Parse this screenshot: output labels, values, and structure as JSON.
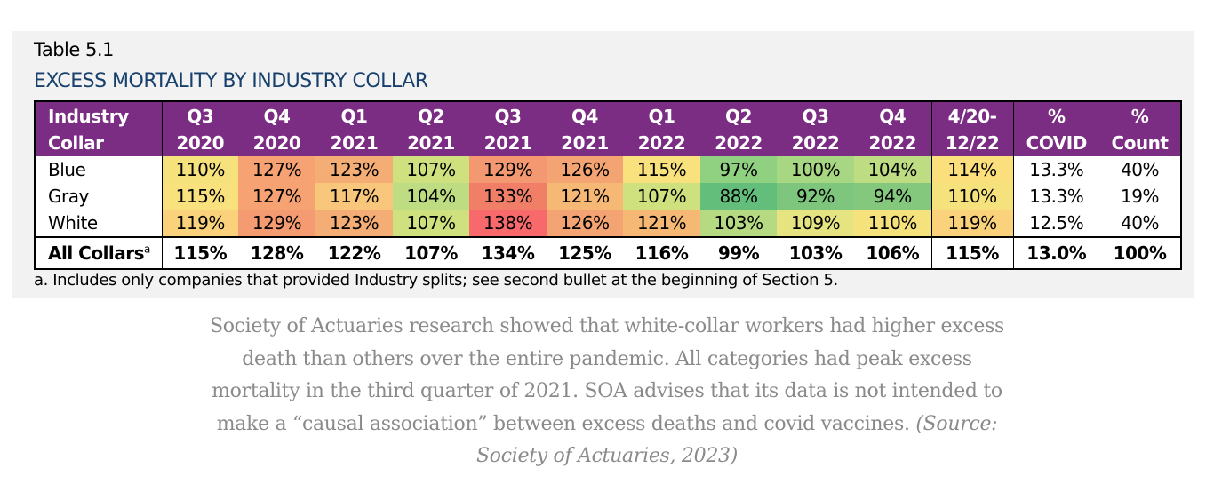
{
  "table_label": "Table 5.1",
  "table_title": "EXCESS MORTALITY BY INDUSTRY COLLAR",
  "header": {
    "first_line1": "Industry",
    "first_line2": "Collar",
    "columns": [
      {
        "l1": "Q3",
        "l2": "2020"
      },
      {
        "l1": "Q4",
        "l2": "2020"
      },
      {
        "l1": "Q1",
        "l2": "2021"
      },
      {
        "l1": "Q2",
        "l2": "2021"
      },
      {
        "l1": "Q3",
        "l2": "2021"
      },
      {
        "l1": "Q4",
        "l2": "2021"
      },
      {
        "l1": "Q1",
        "l2": "2022"
      },
      {
        "l1": "Q2",
        "l2": "2022"
      },
      {
        "l1": "Q3",
        "l2": "2022"
      },
      {
        "l1": "Q4",
        "l2": "2022"
      },
      {
        "l1": "4/20-",
        "l2": "12/22"
      },
      {
        "l1": "%",
        "l2": "COVID"
      },
      {
        "l1": "%",
        "l2": "Count"
      }
    ]
  },
  "rows": [
    {
      "label": "Blue",
      "values": [
        "110%",
        "127%",
        "123%",
        "107%",
        "129%",
        "126%",
        "115%",
        "97%",
        "100%",
        "104%",
        "114%",
        "13.3%",
        "40%"
      ]
    },
    {
      "label": "Gray",
      "values": [
        "115%",
        "127%",
        "117%",
        "104%",
        "133%",
        "121%",
        "107%",
        "88%",
        "92%",
        "94%",
        "110%",
        "13.3%",
        "19%"
      ]
    },
    {
      "label": "White",
      "values": [
        "119%",
        "129%",
        "123%",
        "107%",
        "138%",
        "126%",
        "121%",
        "103%",
        "109%",
        "110%",
        "119%",
        "12.5%",
        "40%"
      ]
    }
  ],
  "total": {
    "label": "All Collars",
    "superscript": "a",
    "values": [
      "115%",
      "128%",
      "122%",
      "107%",
      "134%",
      "125%",
      "116%",
      "99%",
      "103%",
      "106%",
      "115%",
      "13.0%",
      "100%"
    ]
  },
  "heat_colors": [
    [
      "#f6e27c",
      "#f6a272",
      "#f4ad74",
      "#cfe07e",
      "#f39870",
      "#f4a472",
      "#f9e17e",
      "#8fd081",
      "#a7d782",
      "#bedd82",
      "#fbdf7d"
    ],
    [
      "#f9e17e",
      "#f6a272",
      "#f8c77b",
      "#bedd82",
      "#f17f68",
      "#f5b875",
      "#cfe07e",
      "#63be7b",
      "#7ec67d",
      "#84c87e",
      "#f6e27c"
    ],
    [
      "#fbd27c",
      "#f59b71",
      "#f4ad74",
      "#cfe07e",
      "#f8696b",
      "#f4a472",
      "#f5b875",
      "#b5da81",
      "#e6e481",
      "#f6e27c",
      "#fbd27c"
    ]
  ],
  "footnote": "a. Includes only companies that provided Industry splits; see second bullet at the beginning of Section 5.",
  "caption": {
    "text": "Society of Actuaries research showed that white-collar workers had higher excess death than others over the entire pandemic. All categories had peak excess mortality in the third quarter of 2021. SOA advises that its data is not intended to make a “causal association” between excess deaths and covid vaccines.",
    "source": "(Source: Society of Actuaries, 2023)"
  }
}
